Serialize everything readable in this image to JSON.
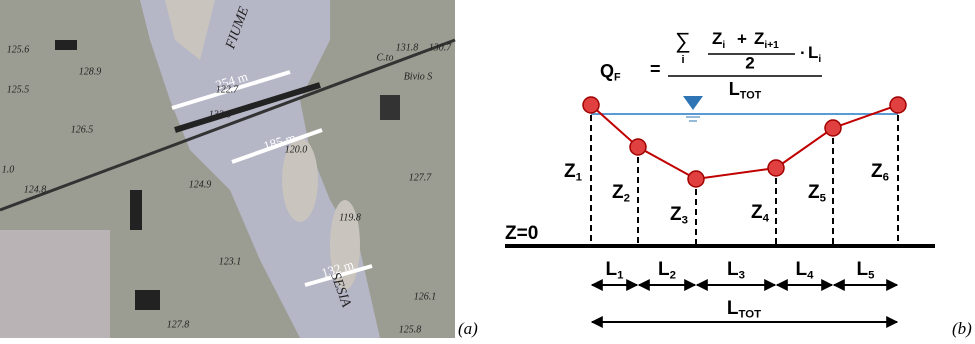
{
  "panel_a": {
    "label": "(a)",
    "map_labels": [
      "FIUME",
      "SESIA",
      "254 m",
      "185 m",
      "132 m",
      "C.to",
      "Bivio S",
      "125.6",
      "128.9",
      "125.5",
      "126.5",
      "124.8",
      "122.7",
      "132.0",
      "120.0",
      "124.9",
      "119.8",
      "123.1",
      "127.8",
      "131.8",
      "130.7",
      "127.7",
      "126.1",
      "125.8",
      "1.0"
    ]
  },
  "panel_b": {
    "label": "(b)",
    "baseline": "Z=0",
    "formula": {
      "lhs": {
        "main": "Q",
        "sub": "F"
      },
      "equals": "=",
      "sum": "∑",
      "sum_index": "i",
      "term1": {
        "main": "Z",
        "sub": "i"
      },
      "plus": "+",
      "term2": {
        "main": "Z",
        "sub": "i+1"
      },
      "half": "2",
      "dot": "·",
      "weight": {
        "main": "L",
        "sub": "i"
      },
      "denominator": {
        "main": "L",
        "sub": "TOT"
      }
    },
    "z_labels": [
      {
        "main": "Z",
        "sub": "1"
      },
      {
        "main": "Z",
        "sub": "2"
      },
      {
        "main": "Z",
        "sub": "3"
      },
      {
        "main": "Z",
        "sub": "4"
      },
      {
        "main": "Z",
        "sub": "5"
      },
      {
        "main": "Z",
        "sub": "6"
      }
    ],
    "l_labels": [
      {
        "main": "L",
        "sub": "1"
      },
      {
        "main": "L",
        "sub": "2"
      },
      {
        "main": "L",
        "sub": "3"
      },
      {
        "main": "L",
        "sub": "4"
      },
      {
        "main": "L",
        "sub": "5"
      }
    ],
    "l_total": {
      "main": "L",
      "sub": "TOT"
    }
  }
}
